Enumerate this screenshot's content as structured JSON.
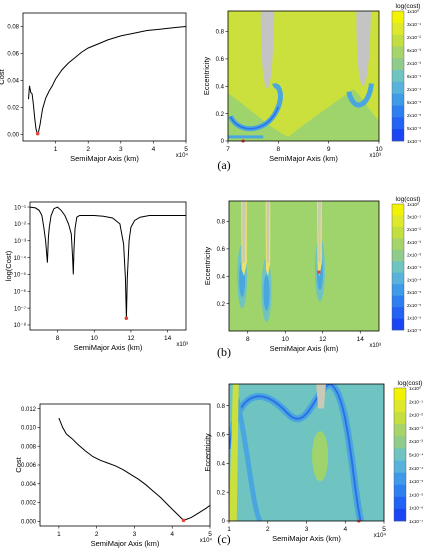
{
  "captions": [
    "(a)",
    "(b)",
    "(c)"
  ],
  "chart_data": [
    {
      "type": "line",
      "panel": "a-left",
      "xlabel": "SemiMajor Axis (km)",
      "ylabel": "Cost",
      "x_multiplier": "x10⁴",
      "xlim": [
        0,
        5
      ],
      "ylim": [
        -0.005,
        0.09
      ],
      "xticks": [
        1,
        2,
        3,
        4,
        5
      ],
      "yticks": [
        0.0,
        0.02,
        0.04,
        0.06,
        0.08
      ],
      "ytick_labels": [
        "0.00",
        "0.02",
        "0.04",
        "0.06",
        "0.08"
      ],
      "series": [
        {
          "x": [
            0.17,
            0.2,
            0.24,
            0.28,
            0.32,
            0.36,
            0.4,
            0.44,
            0.48,
            0.52,
            0.56,
            0.6,
            0.7,
            0.8,
            0.9,
            1.0,
            1.2,
            1.4,
            1.6,
            1.8,
            2.0,
            2.3,
            2.6,
            3.0,
            3.4,
            3.8,
            4.2,
            4.6,
            5.0
          ],
          "y": [
            0.026,
            0.036,
            0.031,
            0.03,
            0.022,
            0.012,
            0.004,
            0.0005,
            0.002,
            0.007,
            0.013,
            0.019,
            0.027,
            0.032,
            0.036,
            0.041,
            0.048,
            0.053,
            0.057,
            0.061,
            0.064,
            0.067,
            0.07,
            0.073,
            0.075,
            0.077,
            0.078,
            0.079,
            0.08
          ]
        }
      ],
      "marker": {
        "x": 0.45,
        "y": 0.0005,
        "color": "#e0463c"
      }
    },
    {
      "type": "heatmap",
      "panel": "a-right",
      "xlabel": "SemiMajor Axis (km)",
      "ylabel": "Eccentricity",
      "x_multiplier": "x10³",
      "xlim": [
        7,
        10
      ],
      "ylim": [
        0,
        0.95
      ],
      "xticks": [
        7,
        8,
        9,
        10
      ],
      "yticks": [
        0,
        0.2,
        0.4,
        0.6,
        0.8
      ],
      "colorbar_title": "log(cost)",
      "colorbar_labels": [
        "1x10⁰",
        "3x10⁻¹",
        "2x10⁻²",
        "6x10⁻³",
        "2x10⁻³",
        "6x10⁻⁴",
        "2x10⁻⁴",
        "5x10⁻⁵",
        "2x10⁻⁵",
        "5x10⁻⁶",
        "1x10⁻⁶"
      ],
      "marker": {
        "x": 7.3,
        "y": 0.0,
        "color": "#e0463c"
      }
    },
    {
      "type": "line",
      "panel": "b-left",
      "xlabel": "SemiMajor Axis (km)",
      "ylabel": "log(Cost)",
      "x_multiplier": "x10³",
      "xlim": [
        6.5,
        15
      ],
      "yscale": "log",
      "ylim": [
        -8.3,
        -0.7
      ],
      "xticks": [
        8,
        10,
        12,
        14
      ],
      "yticks": [
        -1,
        -2,
        -3,
        -4,
        -5,
        -6,
        -7,
        -8
      ],
      "ytick_labels": [
        "10⁻¹",
        "10⁻²",
        "10⁻³",
        "10⁻⁴",
        "10⁻⁵",
        "10⁻⁶",
        "10⁻⁷",
        "10⁻⁸"
      ],
      "series": [
        {
          "x": [
            6.5,
            6.8,
            7.0,
            7.15,
            7.25,
            7.35,
            7.45,
            7.5,
            7.55,
            7.65,
            7.8,
            8.0,
            8.2,
            8.4,
            8.6,
            8.75,
            8.82,
            8.86,
            8.9,
            8.95,
            9.05,
            9.2,
            9.5,
            10.0,
            10.5,
            11.0,
            11.4,
            11.6,
            11.7,
            11.75,
            11.8,
            11.9,
            12.0,
            12.2,
            12.5,
            13.0,
            13.5,
            14.0,
            14.5,
            15.0
          ],
          "y": [
            -1,
            -1.05,
            -1.2,
            -1.5,
            -2.2,
            -3.0,
            -4.3,
            -2.8,
            -2.2,
            -1.5,
            -1.1,
            -1.0,
            -1.2,
            -1.5,
            -2.0,
            -2.6,
            -4.0,
            -5.0,
            -3.5,
            -2.3,
            -1.6,
            -1.5,
            -1.5,
            -1.5,
            -1.55,
            -1.65,
            -2.0,
            -3.2,
            -5.2,
            -7.6,
            -5.2,
            -3.0,
            -2.2,
            -1.8,
            -1.6,
            -1.5,
            -1.5,
            -1.5,
            -1.5,
            -1.5
          ]
        }
      ],
      "marker": {
        "x": 11.75,
        "y": -7.6,
        "color": "#e0463c"
      }
    },
    {
      "type": "heatmap",
      "panel": "b-right",
      "xlabel": "SemiMajor Axis (km)",
      "ylabel": "Eccentricity",
      "x_multiplier": "x10³",
      "xlim": [
        7,
        15
      ],
      "ylim": [
        0,
        0.95
      ],
      "xticks": [
        8,
        10,
        12,
        14
      ],
      "yticks": [
        0.2,
        0.4,
        0.6,
        0.8
      ],
      "colorbar_title": "log(cost)",
      "colorbar_labels": [
        "1x10⁰",
        "3x10⁻¹",
        "2x10⁻²",
        "4x10⁻³",
        "2x10⁻³",
        "4x10⁻⁴",
        "2x10⁻⁴",
        "3x10⁻⁵",
        "2x10⁻⁵",
        "1x10⁻⁵",
        "1x10⁻⁶"
      ],
      "marker": {
        "x": 11.8,
        "y": 0.43,
        "color": "#e0463c"
      }
    },
    {
      "type": "line",
      "panel": "c-left",
      "xlabel": "SemiMajor Axis (km)",
      "ylabel": "Cost",
      "x_multiplier": "x10⁴",
      "xlim": [
        0.5,
        5
      ],
      "ylim": [
        -0.0005,
        0.0125
      ],
      "xticks": [
        1,
        2,
        3,
        4,
        5
      ],
      "yticks": [
        0.0,
        0.002,
        0.004,
        0.006,
        0.008,
        0.01,
        0.012
      ],
      "ytick_labels": [
        "0.000",
        "0.002",
        "0.004",
        "0.006",
        "0.008",
        "0.010",
        "0.012"
      ],
      "series": [
        {
          "x": [
            1.0,
            1.1,
            1.2,
            1.35,
            1.5,
            1.7,
            1.9,
            2.1,
            2.3,
            2.5,
            2.7,
            2.9,
            3.1,
            3.3,
            3.5,
            3.7,
            3.9,
            4.1,
            4.3,
            4.5,
            4.7,
            4.9,
            5.0
          ],
          "y": [
            0.011,
            0.01,
            0.0093,
            0.0088,
            0.0082,
            0.0075,
            0.0069,
            0.0065,
            0.0062,
            0.0059,
            0.0055,
            0.005,
            0.0045,
            0.0039,
            0.0032,
            0.0025,
            0.0017,
            0.0009,
            0.0001,
            0.0004,
            0.0009,
            0.0014,
            0.0017
          ]
        }
      ],
      "marker": {
        "x": 4.3,
        "y": 0.0001,
        "color": "#e0463c"
      }
    },
    {
      "type": "heatmap",
      "panel": "c-right",
      "xlabel": "SemiMajor Axis (km)",
      "ylabel": "Eccentricity",
      "x_multiplier": "x10⁴",
      "xlim": [
        1,
        5
      ],
      "ylim": [
        0,
        0.95
      ],
      "xticks": [
        1,
        2,
        3,
        4,
        5
      ],
      "yticks": [
        0,
        0.2,
        0.4,
        0.6,
        0.8
      ],
      "colorbar_title": "log(cost)",
      "colorbar_labels": [
        "1x10⁰",
        "2x10⁻¹",
        "2x10⁻²",
        "3x10⁻³",
        "2x10⁻³",
        "5x10⁻⁴",
        "2x10⁻⁴",
        "1x10⁻⁵",
        "1x10⁻⁵",
        "1x10⁻⁶",
        "1x10⁻⁷"
      ],
      "marker": {
        "x": 4.35,
        "y": 0.0,
        "color": "#e0463c"
      }
    }
  ]
}
